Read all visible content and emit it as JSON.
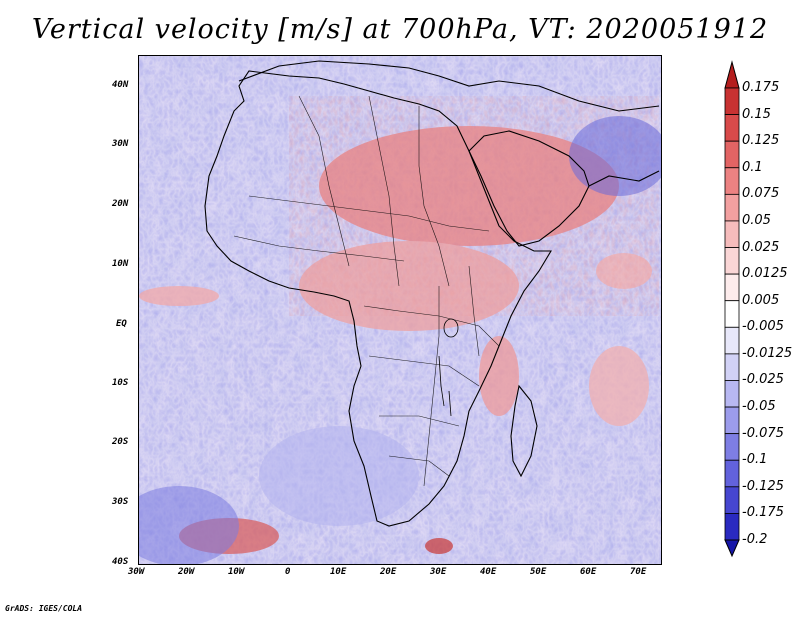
{
  "title": "Vertical velocity [m/s] at 700hPa, VT: 2020051912",
  "map": {
    "region": "Africa and surroundings",
    "lat_labels": [
      "40N",
      "30N",
      "20N",
      "10N",
      "EQ",
      "10S",
      "20S",
      "30S",
      "40S"
    ],
    "lon_labels": [
      "30W",
      "20W",
      "10W",
      "0",
      "10E",
      "20E",
      "30E",
      "40E",
      "50E",
      "60E",
      "70E"
    ]
  },
  "colorbar": {
    "levels": [
      "0.175",
      "0.15",
      "0.125",
      "0.1",
      "0.075",
      "0.05",
      "0.025",
      "0.0125",
      "0.005",
      "-0.005",
      "-0.0125",
      "-0.025",
      "-0.05",
      "-0.075",
      "-0.1",
      "-0.125",
      "-0.175",
      "-0.2"
    ],
    "colors": [
      "#b41e1e",
      "#c83232",
      "#d84a4a",
      "#e26464",
      "#ec8282",
      "#f2a0a0",
      "#f6bcbc",
      "#fad6d6",
      "#fdecec",
      "#ffffff",
      "#e8e8fa",
      "#d2d2f6",
      "#b8b8f2",
      "#9c9cec",
      "#7e7ee4",
      "#6262dc",
      "#4646d0",
      "#2a2ac0",
      "#1616a8"
    ]
  },
  "credit": "GrADS: IGES/COLA"
}
